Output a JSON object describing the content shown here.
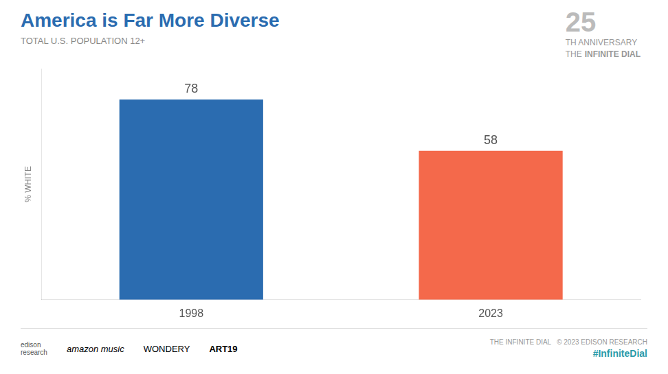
{
  "chart_data": {
    "type": "bar",
    "title": "America is Far More Diverse",
    "subtitle": "TOTAL U.S. POPULATION 12+",
    "y_label": "% WHITE",
    "categories": [
      "1998",
      "2023"
    ],
    "values": [
      78,
      58
    ],
    "colors": [
      "#2B6CB0",
      "#F4694B"
    ],
    "ylim": [
      0,
      90
    ],
    "grid": false,
    "legend": "none",
    "data_labels": true,
    "tick_labels": "x",
    "annotations": [
      "25",
      "TH ANNIVERSARY",
      "THE",
      "INFINITE DIAL",
      "edison\nresearch",
      "amazon music",
      "WONDERY",
      "ART19",
      "THE INFINITE DIAL   © 2023 EDISON RESEARCH",
      "#InfiniteDial"
    ]
  }
}
